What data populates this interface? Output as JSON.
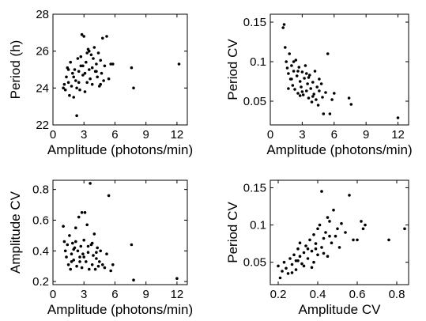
{
  "chart_data": [
    {
      "type": "scatter",
      "title": "",
      "xlabel": "Amplitude (photons/min)",
      "ylabel": "Period (h)",
      "xlim": [
        0,
        13
      ],
      "ylim": [
        22,
        28
      ],
      "xticks": [
        0,
        3,
        6,
        9,
        12
      ],
      "yticks": [
        22,
        24,
        26,
        28
      ],
      "xtick_labels": [
        "0",
        "3",
        "6",
        "9",
        "12"
      ],
      "ytick_labels": [
        "22",
        "24",
        "26",
        "28"
      ],
      "grid": false,
      "legend": "none",
      "points": [
        [
          1.0,
          24.0
        ],
        [
          1.1,
          24.2
        ],
        [
          1.2,
          23.9
        ],
        [
          1.3,
          24.6
        ],
        [
          1.4,
          25.1
        ],
        [
          1.5,
          24.3
        ],
        [
          1.6,
          23.6
        ],
        [
          1.7,
          25.4
        ],
        [
          1.8,
          24.1
        ],
        [
          1.9,
          24.8
        ],
        [
          2.0,
          23.5
        ],
        [
          2.1,
          25.0
        ],
        [
          2.2,
          24.4
        ],
        [
          2.3,
          22.5
        ],
        [
          2.4,
          25.6
        ],
        [
          2.5,
          24.9
        ],
        [
          2.6,
          23.9
        ],
        [
          2.7,
          25.2
        ],
        [
          2.8,
          26.9
        ],
        [
          2.9,
          24.7
        ],
        [
          3.0,
          26.8
        ],
        [
          3.1,
          24.8
        ],
        [
          3.2,
          25.4
        ],
        [
          3.3,
          24.3
        ],
        [
          3.4,
          26.1
        ],
        [
          3.5,
          25.0
        ],
        [
          3.6,
          24.5
        ],
        [
          3.7,
          25.8
        ],
        [
          3.8,
          24.2
        ],
        [
          3.9,
          25.6
        ],
        [
          4.0,
          26.2
        ],
        [
          4.1,
          24.9
        ],
        [
          4.2,
          25.3
        ],
        [
          4.3,
          24.6
        ],
        [
          4.4,
          25.9
        ],
        [
          4.5,
          24.1
        ],
        [
          4.6,
          25.5
        ],
        [
          4.7,
          24.8
        ],
        [
          4.8,
          26.7
        ],
        [
          4.9,
          24.4
        ],
        [
          5.0,
          25.2
        ],
        [
          5.2,
          26.8
        ],
        [
          5.4,
          24.5
        ],
        [
          5.6,
          25.3
        ],
        [
          5.8,
          25.3
        ],
        [
          7.6,
          25.1
        ],
        [
          7.8,
          24.0
        ],
        [
          12.2,
          25.3
        ],
        [
          2.3,
          24.0
        ],
        [
          2.7,
          25.7
        ],
        [
          3.1,
          23.8
        ],
        [
          3.5,
          26.0
        ],
        [
          4.2,
          24.9
        ],
        [
          2.0,
          24.6
        ],
        [
          1.5,
          25.0
        ],
        [
          3.8,
          25.1
        ],
        [
          2.9,
          25.2
        ],
        [
          4.6,
          24.2
        ],
        [
          3.3,
          25.9
        ],
        [
          2.5,
          24.3
        ]
      ]
    },
    {
      "type": "scatter",
      "title": "",
      "xlabel": "Amplitude (photons/min)",
      "ylabel": "Period CV",
      "xlim": [
        0,
        13
      ],
      "ylim": [
        0.02,
        0.16
      ],
      "xticks": [
        0,
        3,
        6,
        9,
        12
      ],
      "yticks": [
        0.05,
        0.1,
        0.15
      ],
      "xtick_labels": [
        "0",
        "3",
        "6",
        "9",
        "12"
      ],
      "ytick_labels": [
        "0.05",
        "0.1",
        "0.15"
      ],
      "grid": false,
      "legend": "none",
      "points": [
        [
          1.2,
          0.143
        ],
        [
          1.3,
          0.147
        ],
        [
          1.4,
          0.118
        ],
        [
          1.5,
          0.1
        ],
        [
          1.6,
          0.092
        ],
        [
          1.7,
          0.085
        ],
        [
          1.8,
          0.11
        ],
        [
          1.9,
          0.078
        ],
        [
          2.0,
          0.095
        ],
        [
          2.1,
          0.07
        ],
        [
          2.2,
          0.088
        ],
        [
          2.3,
          0.065
        ],
        [
          2.4,
          0.102
        ],
        [
          2.5,
          0.082
        ],
        [
          2.6,
          0.06
        ],
        [
          2.7,
          0.093
        ],
        [
          2.8,
          0.075
        ],
        [
          2.9,
          0.068
        ],
        [
          3.0,
          0.087
        ],
        [
          3.1,
          0.058
        ],
        [
          3.2,
          0.079
        ],
        [
          3.3,
          0.095
        ],
        [
          3.4,
          0.063
        ],
        [
          3.5,
          0.072
        ],
        [
          3.6,
          0.054
        ],
        [
          3.7,
          0.083
        ],
        [
          3.8,
          0.066
        ],
        [
          3.9,
          0.049
        ],
        [
          4.0,
          0.074
        ],
        [
          4.1,
          0.059
        ],
        [
          4.2,
          0.088
        ],
        [
          4.3,
          0.052
        ],
        [
          4.4,
          0.068
        ],
        [
          4.5,
          0.045
        ],
        [
          4.6,
          0.063
        ],
        [
          4.8,
          0.072
        ],
        [
          4.9,
          0.055
        ],
        [
          5.0,
          0.034
        ],
        [
          5.2,
          0.061
        ],
        [
          5.4,
          0.11
        ],
        [
          5.6,
          0.034
        ],
        [
          5.8,
          0.052
        ],
        [
          6.0,
          0.06
        ],
        [
          7.4,
          0.054
        ],
        [
          7.6,
          0.046
        ],
        [
          12.0,
          0.029
        ],
        [
          2.0,
          0.078
        ],
        [
          2.6,
          0.088
        ],
        [
          3.0,
          0.062
        ],
        [
          3.6,
          0.08
        ],
        [
          2.2,
          0.1
        ],
        [
          2.8,
          0.057
        ],
        [
          3.4,
          0.085
        ],
        [
          4.0,
          0.056
        ],
        [
          1.7,
          0.066
        ],
        [
          4.6,
          0.078
        ]
      ]
    },
    {
      "type": "scatter",
      "title": "",
      "xlabel": "Amplitude (photons/min)",
      "ylabel": "Amplitude CV",
      "xlim": [
        0,
        13
      ],
      "ylim": [
        0.18,
        0.86
      ],
      "xticks": [
        0,
        3,
        6,
        9,
        12
      ],
      "yticks": [
        0.2,
        0.4,
        0.6,
        0.8
      ],
      "xtick_labels": [
        "0",
        "3",
        "6",
        "9",
        "12"
      ],
      "ytick_labels": [
        "0.2",
        "0.4",
        "0.6",
        "0.8"
      ],
      "grid": false,
      "legend": "none",
      "points": [
        [
          1.0,
          0.56
        ],
        [
          1.1,
          0.46
        ],
        [
          1.2,
          0.4
        ],
        [
          1.3,
          0.36
        ],
        [
          1.4,
          0.44
        ],
        [
          1.5,
          0.31
        ],
        [
          1.6,
          0.5
        ],
        [
          1.7,
          0.28
        ],
        [
          1.8,
          0.38
        ],
        [
          1.9,
          0.45
        ],
        [
          2.0,
          0.34
        ],
        [
          2.1,
          0.42
        ],
        [
          2.2,
          0.55
        ],
        [
          2.3,
          0.3
        ],
        [
          2.4,
          0.4
        ],
        [
          2.5,
          0.62
        ],
        [
          2.6,
          0.36
        ],
        [
          2.7,
          0.43
        ],
        [
          2.8,
          0.65
        ],
        [
          2.9,
          0.38
        ],
        [
          3.0,
          0.47
        ],
        [
          3.1,
          0.65
        ],
        [
          3.2,
          0.33
        ],
        [
          3.3,
          0.57
        ],
        [
          3.4,
          0.39
        ],
        [
          3.5,
          0.28
        ],
        [
          3.6,
          0.84
        ],
        [
          3.7,
          0.44
        ],
        [
          3.8,
          0.31
        ],
        [
          3.9,
          0.37
        ],
        [
          4.0,
          0.51
        ],
        [
          4.1,
          0.28
        ],
        [
          4.2,
          0.35
        ],
        [
          4.3,
          0.42
        ],
        [
          4.4,
          0.3
        ],
        [
          4.5,
          0.33
        ],
        [
          4.6,
          0.4
        ],
        [
          4.8,
          0.31
        ],
        [
          5.0,
          0.29
        ],
        [
          5.2,
          0.38
        ],
        [
          5.4,
          0.76
        ],
        [
          5.6,
          0.27
        ],
        [
          5.8,
          0.31
        ],
        [
          7.6,
          0.44
        ],
        [
          7.8,
          0.21
        ],
        [
          12.0,
          0.22
        ],
        [
          2.0,
          0.41
        ],
        [
          2.6,
          0.33
        ],
        [
          3.0,
          0.36
        ],
        [
          2.2,
          0.46
        ],
        [
          2.8,
          0.29
        ],
        [
          3.4,
          0.43
        ],
        [
          1.8,
          0.33
        ],
        [
          4.2,
          0.39
        ],
        [
          3.8,
          0.45
        ]
      ]
    },
    {
      "type": "scatter",
      "title": "",
      "xlabel": "Amplitude CV",
      "ylabel": "Period CV",
      "xlim": [
        0.16,
        0.86
      ],
      "ylim": [
        0.02,
        0.16
      ],
      "xticks": [
        0.2,
        0.4,
        0.6,
        0.8
      ],
      "yticks": [
        0.05,
        0.1,
        0.15
      ],
      "xtick_labels": [
        "0.2",
        "0.4",
        "0.6",
        "0.8"
      ],
      "ytick_labels": [
        "0.05",
        "0.1",
        "0.15"
      ],
      "grid": false,
      "legend": "none",
      "points": [
        [
          0.2,
          0.045
        ],
        [
          0.21,
          0.029
        ],
        [
          0.22,
          0.038
        ],
        [
          0.23,
          0.05
        ],
        [
          0.24,
          0.042
        ],
        [
          0.25,
          0.035
        ],
        [
          0.26,
          0.055
        ],
        [
          0.27,
          0.047
        ],
        [
          0.28,
          0.06
        ],
        [
          0.29,
          0.04
        ],
        [
          0.3,
          0.052
        ],
        [
          0.3,
          0.068
        ],
        [
          0.31,
          0.058
        ],
        [
          0.32,
          0.048
        ],
        [
          0.33,
          0.063
        ],
        [
          0.34,
          0.072
        ],
        [
          0.35,
          0.055
        ],
        [
          0.36,
          0.08
        ],
        [
          0.37,
          0.065
        ],
        [
          0.38,
          0.087
        ],
        [
          0.38,
          0.05
        ],
        [
          0.39,
          0.075
        ],
        [
          0.4,
          0.095
        ],
        [
          0.4,
          0.06
        ],
        [
          0.41,
          0.1
        ],
        [
          0.42,
          0.07
        ],
        [
          0.42,
          0.145
        ],
        [
          0.43,
          0.082
        ],
        [
          0.44,
          0.09
        ],
        [
          0.45,
          0.058
        ],
        [
          0.46,
          0.105
        ],
        [
          0.47,
          0.076
        ],
        [
          0.48,
          0.12
        ],
        [
          0.49,
          0.085
        ],
        [
          0.5,
          0.095
        ],
        [
          0.51,
          0.07
        ],
        [
          0.52,
          0.102
        ],
        [
          0.54,
          0.09
        ],
        [
          0.56,
          0.14
        ],
        [
          0.58,
          0.08
        ],
        [
          0.6,
          0.08
        ],
        [
          0.62,
          0.105
        ],
        [
          0.63,
          0.095
        ],
        [
          0.64,
          0.1
        ],
        [
          0.76,
          0.08
        ],
        [
          0.84,
          0.095
        ],
        [
          0.27,
          0.036
        ],
        [
          0.33,
          0.045
        ],
        [
          0.35,
          0.068
        ],
        [
          0.37,
          0.043
        ],
        [
          0.43,
          0.062
        ],
        [
          0.46,
          0.085
        ],
        [
          0.31,
          0.076
        ],
        [
          0.39,
          0.068
        ],
        [
          0.45,
          0.11
        ],
        [
          0.29,
          0.052
        ]
      ]
    }
  ]
}
